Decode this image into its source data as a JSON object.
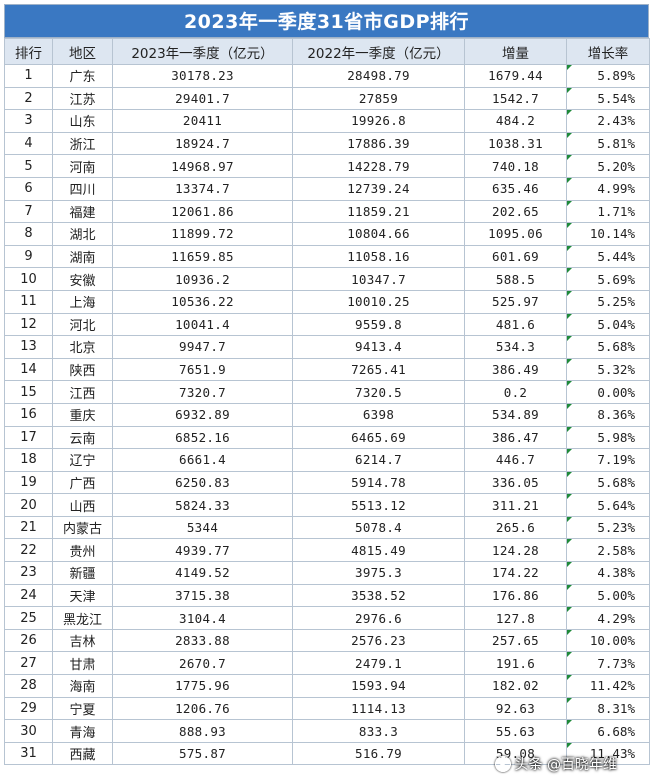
{
  "title": "2023年一季度31省市GDP排行",
  "headers": {
    "rank": "排行",
    "region": "地区",
    "gdp2023": "2023年一季度（亿元）",
    "gdp2022": "2022年一季度（亿元）",
    "increase": "增量",
    "growth": "增长率"
  },
  "rows": [
    {
      "rank": "1",
      "region": "广东",
      "gdp2023": "30178.23",
      "gdp2022": "28498.79",
      "increase": "1679.44",
      "growth": "5.89%"
    },
    {
      "rank": "2",
      "region": "江苏",
      "gdp2023": "29401.7",
      "gdp2022": "27859",
      "increase": "1542.7",
      "growth": "5.54%"
    },
    {
      "rank": "3",
      "region": "山东",
      "gdp2023": "20411",
      "gdp2022": "19926.8",
      "increase": "484.2",
      "growth": "2.43%"
    },
    {
      "rank": "4",
      "region": "浙江",
      "gdp2023": "18924.7",
      "gdp2022": "17886.39",
      "increase": "1038.31",
      "growth": "5.81%"
    },
    {
      "rank": "5",
      "region": "河南",
      "gdp2023": "14968.97",
      "gdp2022": "14228.79",
      "increase": "740.18",
      "growth": "5.20%"
    },
    {
      "rank": "6",
      "region": "四川",
      "gdp2023": "13374.7",
      "gdp2022": "12739.24",
      "increase": "635.46",
      "growth": "4.99%"
    },
    {
      "rank": "7",
      "region": "福建",
      "gdp2023": "12061.86",
      "gdp2022": "11859.21",
      "increase": "202.65",
      "growth": "1.71%"
    },
    {
      "rank": "8",
      "region": "湖北",
      "gdp2023": "11899.72",
      "gdp2022": "10804.66",
      "increase": "1095.06",
      "growth": "10.14%"
    },
    {
      "rank": "9",
      "region": "湖南",
      "gdp2023": "11659.85",
      "gdp2022": "11058.16",
      "increase": "601.69",
      "growth": "5.44%"
    },
    {
      "rank": "10",
      "region": "安徽",
      "gdp2023": "10936.2",
      "gdp2022": "10347.7",
      "increase": "588.5",
      "growth": "5.69%"
    },
    {
      "rank": "11",
      "region": "上海",
      "gdp2023": "10536.22",
      "gdp2022": "10010.25",
      "increase": "525.97",
      "growth": "5.25%"
    },
    {
      "rank": "12",
      "region": "河北",
      "gdp2023": "10041.4",
      "gdp2022": "9559.8",
      "increase": "481.6",
      "growth": "5.04%"
    },
    {
      "rank": "13",
      "region": "北京",
      "gdp2023": "9947.7",
      "gdp2022": "9413.4",
      "increase": "534.3",
      "growth": "5.68%"
    },
    {
      "rank": "14",
      "region": "陕西",
      "gdp2023": "7651.9",
      "gdp2022": "7265.41",
      "increase": "386.49",
      "growth": "5.32%"
    },
    {
      "rank": "15",
      "region": "江西",
      "gdp2023": "7320.7",
      "gdp2022": "7320.5",
      "increase": "0.2",
      "growth": "0.00%"
    },
    {
      "rank": "16",
      "region": "重庆",
      "gdp2023": "6932.89",
      "gdp2022": "6398",
      "increase": "534.89",
      "growth": "8.36%"
    },
    {
      "rank": "17",
      "region": "云南",
      "gdp2023": "6852.16",
      "gdp2022": "6465.69",
      "increase": "386.47",
      "growth": "5.98%"
    },
    {
      "rank": "18",
      "region": "辽宁",
      "gdp2023": "6661.4",
      "gdp2022": "6214.7",
      "increase": "446.7",
      "growth": "7.19%"
    },
    {
      "rank": "19",
      "region": "广西",
      "gdp2023": "6250.83",
      "gdp2022": "5914.78",
      "increase": "336.05",
      "growth": "5.68%"
    },
    {
      "rank": "20",
      "region": "山西",
      "gdp2023": "5824.33",
      "gdp2022": "5513.12",
      "increase": "311.21",
      "growth": "5.64%"
    },
    {
      "rank": "21",
      "region": "内蒙古",
      "gdp2023": "5344",
      "gdp2022": "5078.4",
      "increase": "265.6",
      "growth": "5.23%"
    },
    {
      "rank": "22",
      "region": "贵州",
      "gdp2023": "4939.77",
      "gdp2022": "4815.49",
      "increase": "124.28",
      "growth": "2.58%"
    },
    {
      "rank": "23",
      "region": "新疆",
      "gdp2023": "4149.52",
      "gdp2022": "3975.3",
      "increase": "174.22",
      "growth": "4.38%"
    },
    {
      "rank": "24",
      "region": "天津",
      "gdp2023": "3715.38",
      "gdp2022": "3538.52",
      "increase": "176.86",
      "growth": "5.00%"
    },
    {
      "rank": "25",
      "region": "黑龙江",
      "gdp2023": "3104.4",
      "gdp2022": "2976.6",
      "increase": "127.8",
      "growth": "4.29%"
    },
    {
      "rank": "26",
      "region": "吉林",
      "gdp2023": "2833.88",
      "gdp2022": "2576.23",
      "increase": "257.65",
      "growth": "10.00%"
    },
    {
      "rank": "27",
      "region": "甘肃",
      "gdp2023": "2670.7",
      "gdp2022": "2479.1",
      "increase": "191.6",
      "growth": "7.73%"
    },
    {
      "rank": "28",
      "region": "海南",
      "gdp2023": "1775.96",
      "gdp2022": "1593.94",
      "increase": "182.02",
      "growth": "11.42%"
    },
    {
      "rank": "29",
      "region": "宁夏",
      "gdp2023": "1206.76",
      "gdp2022": "1114.13",
      "increase": "92.63",
      "growth": "8.31%"
    },
    {
      "rank": "30",
      "region": "青海",
      "gdp2023": "888.93",
      "gdp2022": "833.3",
      "increase": "55.63",
      "growth": "6.68%"
    },
    {
      "rank": "31",
      "region": "西藏",
      "gdp2023": "575.87",
      "gdp2022": "516.79",
      "increase": "59.08",
      "growth": "11.43%"
    }
  ],
  "watermark": "头条 @百晓年维",
  "colors": {
    "title_bg": "#3a78c2",
    "header_bg": "#dde6f1",
    "border": "#b7c4d2"
  }
}
